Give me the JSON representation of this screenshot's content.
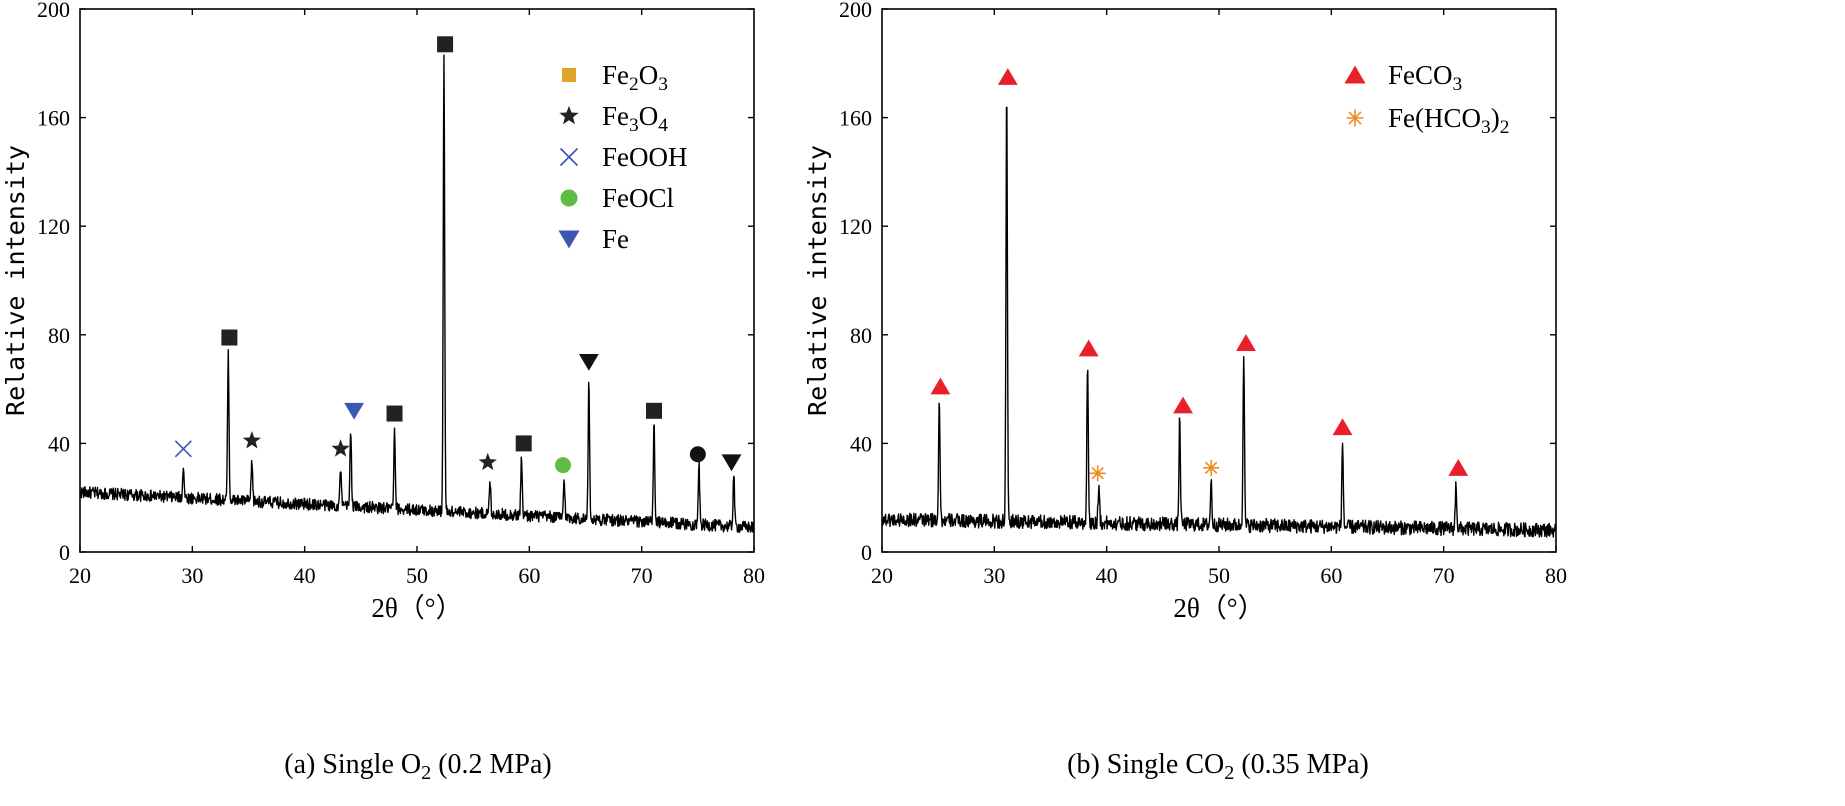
{
  "chart_data": [
    {
      "type": "line",
      "panel_caption": {
        "prefix": "(a) Single O",
        "sub": "2",
        "suffix": " (0.2 MPa)"
      },
      "xlabel": "2θ（°）",
      "ylabel": "Relative intensity",
      "xlim": [
        20,
        80
      ],
      "ylim": [
        0,
        200
      ],
      "xticks": [
        "20",
        "30",
        "40",
        "50",
        "60",
        "70",
        "80"
      ],
      "yticks": [
        "0",
        "40",
        "80",
        "120",
        "160",
        "200"
      ],
      "grid": false,
      "legend_position": "top-right",
      "legend": [
        {
          "symbol": "square",
          "color": "#E0A526",
          "label": "Fe",
          "sub1": "2",
          "mid": "O",
          "sub2": "3"
        },
        {
          "symbol": "star",
          "color": "#222222",
          "label": "Fe",
          "sub1": "3",
          "mid": "O",
          "sub2": "4"
        },
        {
          "symbol": "cross",
          "color": "#3B56B5",
          "label": "FeOOH",
          "sub1": "",
          "mid": "",
          "sub2": ""
        },
        {
          "symbol": "circle",
          "color": "#5DBB46",
          "label": "FeOCl",
          "sub1": "",
          "mid": "",
          "sub2": ""
        },
        {
          "symbol": "triangle-down",
          "color": "#3B56B5",
          "label": "Fe",
          "sub1": "",
          "mid": "",
          "sub2": ""
        }
      ],
      "peaks": [
        {
          "x": 29.2,
          "y": 32
        },
        {
          "x": 33.2,
          "y": 73
        },
        {
          "x": 35.3,
          "y": 34
        },
        {
          "x": 43.2,
          "y": 31
        },
        {
          "x": 44.1,
          "y": 46
        },
        {
          "x": 48.0,
          "y": 44
        },
        {
          "x": 52.4,
          "y": 182
        },
        {
          "x": 56.5,
          "y": 26
        },
        {
          "x": 59.3,
          "y": 35
        },
        {
          "x": 63.1,
          "y": 27
        },
        {
          "x": 65.3,
          "y": 63
        },
        {
          "x": 71.1,
          "y": 47
        },
        {
          "x": 75.1,
          "y": 32
        },
        {
          "x": 78.2,
          "y": 29
        }
      ],
      "baseline": {
        "start": 22,
        "end": 9,
        "noise": 2.2
      },
      "markers": [
        {
          "symbol": "cross",
          "color": "#3B56B5",
          "x": 29.2,
          "y": 38
        },
        {
          "symbol": "square",
          "color": "#222222",
          "x": 33.3,
          "y": 79
        },
        {
          "symbol": "star",
          "color": "#222222",
          "x": 35.3,
          "y": 41
        },
        {
          "symbol": "star",
          "color": "#222222",
          "x": 43.2,
          "y": 38
        },
        {
          "symbol": "triangle-down",
          "color": "#3B56B5",
          "x": 44.4,
          "y": 52
        },
        {
          "symbol": "square",
          "color": "#222222",
          "x": 48.0,
          "y": 51
        },
        {
          "symbol": "square",
          "color": "#222222",
          "x": 52.5,
          "y": 187
        },
        {
          "symbol": "star",
          "color": "#222222",
          "x": 56.3,
          "y": 33
        },
        {
          "symbol": "square",
          "color": "#222222",
          "x": 59.5,
          "y": 40
        },
        {
          "symbol": "circle",
          "color": "#5DBB46",
          "x": 63.0,
          "y": 32
        },
        {
          "symbol": "triangle-down",
          "color": "#111111",
          "x": 65.3,
          "y": 70
        },
        {
          "symbol": "square",
          "color": "#222222",
          "x": 71.1,
          "y": 52
        },
        {
          "symbol": "circle",
          "color": "#111111",
          "x": 75.0,
          "y": 36
        },
        {
          "symbol": "triangle-down",
          "color": "#111111",
          "x": 78.0,
          "y": 33
        }
      ]
    },
    {
      "type": "line",
      "panel_caption": {
        "prefix": "(b) Single CO",
        "sub": "2",
        "suffix": " (0.35 MPa)"
      },
      "xlabel": "2θ（°）",
      "ylabel": "Relative intensity",
      "xlim": [
        20,
        80
      ],
      "ylim": [
        0,
        200
      ],
      "xticks": [
        "20",
        "30",
        "40",
        "50",
        "60",
        "70",
        "80"
      ],
      "yticks": [
        "0",
        "40",
        "80",
        "120",
        "160",
        "200"
      ],
      "grid": false,
      "legend_position": "top-right",
      "legend": [
        {
          "symbol": "triangle-up",
          "color": "#E8202A",
          "label": "FeCO",
          "sub1": "3",
          "mid": "",
          "sub2": ""
        },
        {
          "symbol": "asterisk",
          "color": "#F08A24",
          "label": "Fe(HCO",
          "sub1": "3",
          "mid": ")",
          "sub2": "2"
        }
      ],
      "peaks": [
        {
          "x": 25.1,
          "y": 57
        },
        {
          "x": 31.1,
          "y": 169
        },
        {
          "x": 38.3,
          "y": 70
        },
        {
          "x": 39.3,
          "y": 25
        },
        {
          "x": 46.5,
          "y": 49
        },
        {
          "x": 49.3,
          "y": 26
        },
        {
          "x": 52.2,
          "y": 73
        },
        {
          "x": 61.0,
          "y": 40
        },
        {
          "x": 71.1,
          "y": 25
        }
      ],
      "baseline": {
        "start": 12,
        "end": 8,
        "noise": 2.6
      },
      "markers": [
        {
          "symbol": "triangle-up",
          "color": "#E8202A",
          "x": 25.2,
          "y": 61
        },
        {
          "symbol": "triangle-up",
          "color": "#E8202A",
          "x": 31.2,
          "y": 175
        },
        {
          "symbol": "triangle-up",
          "color": "#E8202A",
          "x": 38.4,
          "y": 75
        },
        {
          "symbol": "asterisk",
          "color": "#F08A24",
          "x": 39.2,
          "y": 29
        },
        {
          "symbol": "triangle-up",
          "color": "#E8202A",
          "x": 46.8,
          "y": 54
        },
        {
          "symbol": "asterisk",
          "color": "#F08A24",
          "x": 49.3,
          "y": 31
        },
        {
          "symbol": "triangle-up",
          "color": "#E8202A",
          "x": 52.4,
          "y": 77
        },
        {
          "symbol": "triangle-up",
          "color": "#E8202A",
          "x": 61.0,
          "y": 46
        },
        {
          "symbol": "triangle-up",
          "color": "#E8202A",
          "x": 71.3,
          "y": 31
        }
      ]
    }
  ]
}
